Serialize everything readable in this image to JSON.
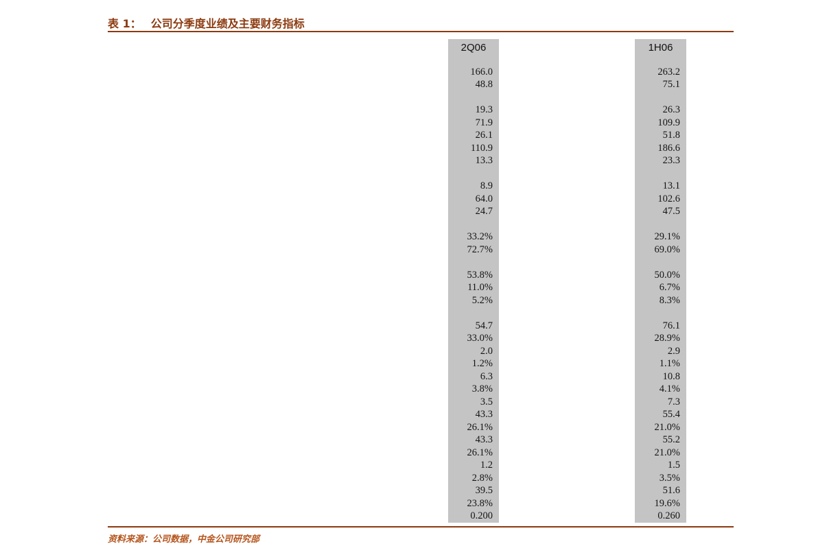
{
  "page": {
    "title_prefix": "表 1：",
    "title_text": "公司分季度业绩及主要财务指标",
    "source_label": "资料来源：",
    "source_text": "公司数据，中金公司研究部"
  },
  "colors": {
    "accent": "#8C3A0F",
    "footer_text": "#B5551D",
    "column_bg": "#C4C4C4",
    "number_text": "#141414"
  },
  "table": {
    "columns": [
      {
        "header": "2Q06",
        "values": [
          "",
          "166.0",
          "48.8",
          "",
          "19.3",
          "71.9",
          "26.1",
          "110.9",
          "13.3",
          "",
          "8.9",
          "64.0",
          "24.7",
          "",
          "33.2%",
          "72.7%",
          "",
          "53.8%",
          "11.0%",
          "5.2%",
          "",
          "54.7",
          "33.0%",
          "2.0",
          "1.2%",
          "6.3",
          "3.8%",
          "3.5",
          "43.3",
          "26.1%",
          "43.3",
          "26.1%",
          "1.2",
          "2.8%",
          "39.5",
          "23.8%",
          "0.200"
        ]
      },
      {
        "header": "1H06",
        "values": [
          "",
          "263.2",
          "75.1",
          "",
          "26.3",
          "109.9",
          "51.8",
          "186.6",
          "23.3",
          "",
          "13.1",
          "102.6",
          "47.5",
          "",
          "29.1%",
          "69.0%",
          "",
          "50.0%",
          "6.7%",
          "8.3%",
          "",
          "76.1",
          "28.9%",
          "2.9",
          "1.1%",
          "10.8",
          "4.1%",
          "7.3",
          "55.4",
          "21.0%",
          "55.2",
          "21.0%",
          "1.5",
          "3.5%",
          "51.6",
          "19.6%",
          "0.260"
        ]
      }
    ]
  }
}
